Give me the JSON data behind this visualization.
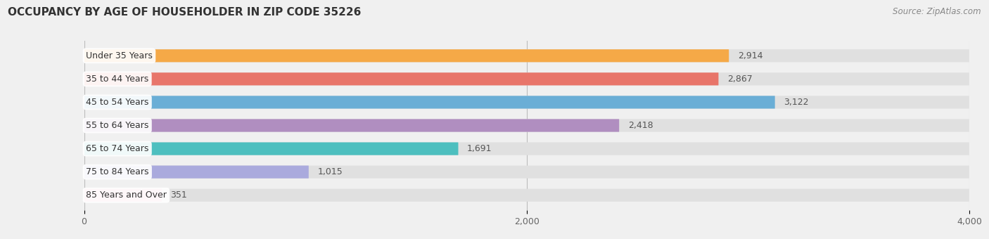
{
  "title": "OCCUPANCY BY AGE OF HOUSEHOLDER IN ZIP CODE 35226",
  "source": "Source: ZipAtlas.com",
  "categories": [
    "Under 35 Years",
    "35 to 44 Years",
    "45 to 54 Years",
    "55 to 64 Years",
    "65 to 74 Years",
    "75 to 84 Years",
    "85 Years and Over"
  ],
  "values": [
    2914,
    2867,
    3122,
    2418,
    1691,
    1015,
    351
  ],
  "bar_colors": [
    "#F5A947",
    "#E8756A",
    "#6AAED6",
    "#B08EC0",
    "#4DBFBF",
    "#AAAADD",
    "#F5A0C0"
  ],
  "xlim": [
    0,
    4000
  ],
  "xticks": [
    0,
    2000,
    4000
  ],
  "background_color": "#f0f0f0",
  "bar_background_color": "#e0e0e0",
  "title_fontsize": 11,
  "source_fontsize": 8.5,
  "label_fontsize": 9,
  "value_fontsize": 9,
  "bar_height": 0.55,
  "fig_width": 14.06,
  "fig_height": 3.4
}
